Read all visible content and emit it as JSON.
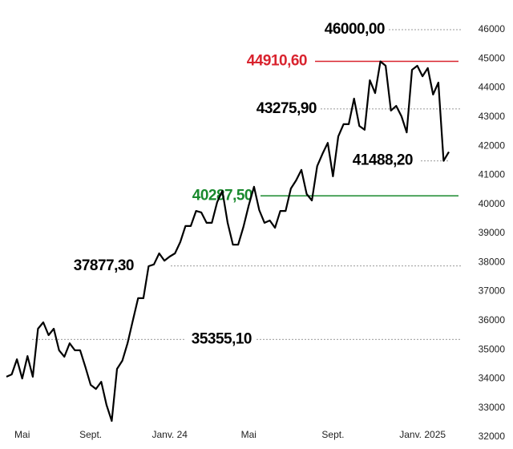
{
  "chart_data": {
    "type": "line",
    "categories": [
      null,
      null,
      null,
      "Mai",
      null,
      null,
      null,
      null,
      null,
      null,
      null,
      null,
      null,
      null,
      null,
      null,
      "Sept.",
      null,
      null,
      null,
      null,
      null,
      null,
      null,
      null,
      null,
      null,
      null,
      null,
      null,
      null,
      "Janv. 24",
      null,
      null,
      null,
      null,
      null,
      null,
      null,
      null,
      null,
      null,
      null,
      null,
      null,
      null,
      "Mai",
      null,
      null,
      null,
      null,
      null,
      null,
      null,
      null,
      null,
      null,
      null,
      null,
      null,
      null,
      null,
      "Sept.",
      null,
      null,
      null,
      null,
      null,
      null,
      null,
      null,
      null,
      null,
      null,
      null,
      null,
      null,
      null,
      null,
      "Janv. 2025",
      null,
      null,
      null,
      null,
      null
    ],
    "series": [
      {
        "color": "#000000",
        "values": [
          34070,
          34150,
          34670,
          34010,
          34780,
          34070,
          35720,
          35940,
          35500,
          35720,
          34980,
          34760,
          35220,
          34980,
          34980,
          34400,
          33790,
          33650,
          33900,
          33100,
          32550,
          34340,
          34620,
          35220,
          36000,
          36770,
          36770,
          37870,
          37930,
          38310,
          38060,
          38200,
          38310,
          38700,
          39250,
          39250,
          39770,
          39720,
          39360,
          39360,
          40070,
          40460,
          39360,
          38610,
          38610,
          39220,
          39960,
          40600,
          39800,
          39360,
          39440,
          39190,
          39770,
          39770,
          40540,
          40820,
          41180,
          40350,
          40130,
          41310,
          41730,
          42110,
          40960,
          42330,
          42750,
          42750,
          43630,
          42690,
          42560,
          44260,
          43820,
          44910,
          44760,
          43220,
          43380,
          43020,
          42470,
          44620,
          44760,
          44400,
          44680,
          43770,
          44180,
          41490,
          41800
        ]
      }
    ],
    "ylim": [
      32000,
      46000
    ],
    "yticks": [
      32000,
      33000,
      34000,
      35000,
      36000,
      37000,
      38000,
      39000,
      40000,
      41000,
      42000,
      43000,
      44000,
      45000,
      46000
    ],
    "annotations": [
      {
        "value": 46000,
        "label": "46000,00",
        "color": "#000000",
        "style": "dotted"
      },
      {
        "value": 44910.6,
        "label": "44910,60",
        "color": "#d9232e",
        "style": "solid"
      },
      {
        "value": 43275.9,
        "label": "43275,90",
        "color": "#000000",
        "style": "dotted"
      },
      {
        "value": 41488.2,
        "label": "41488,20",
        "color": "#000000",
        "style": "dotted"
      },
      {
        "value": 40287.5,
        "label": "40287,50",
        "color": "#1a8a2e",
        "style": "solid"
      },
      {
        "value": 37877.3,
        "label": "37877,30",
        "color": "#000000",
        "style": "dotted"
      },
      {
        "value": 35355.1,
        "label": "35355,10",
        "color": "#000000",
        "style": "dotted"
      }
    ]
  }
}
